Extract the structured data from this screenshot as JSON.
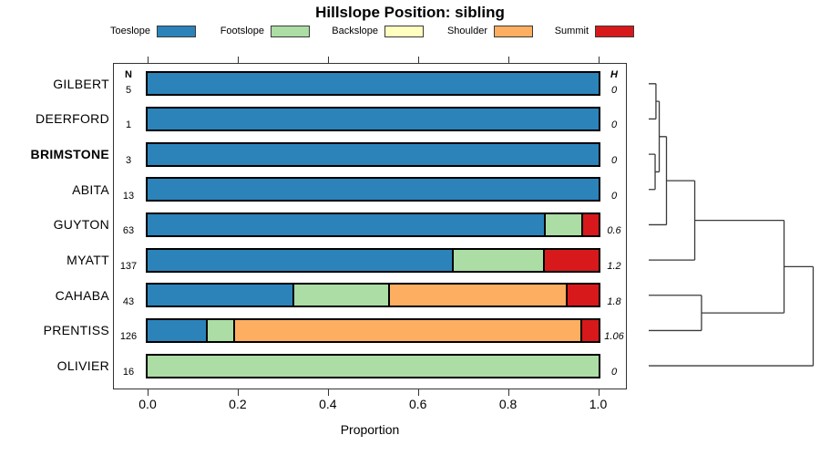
{
  "title": "Hillslope Position: sibling",
  "legend": [
    {
      "label": "Toeslope",
      "color": "#2B83BA"
    },
    {
      "label": "Footslope",
      "color": "#ABDDA4"
    },
    {
      "label": "Backslope",
      "color": "#FFFFBF"
    },
    {
      "label": "Shoulder",
      "color": "#FDAE61"
    },
    {
      "label": "Summit",
      "color": "#D7191C"
    }
  ],
  "table": {
    "n_header": "N",
    "h_header": "H"
  },
  "xaxis": {
    "label": "Proportion",
    "ticks": [
      "0.0",
      "0.2",
      "0.4",
      "0.6",
      "0.8",
      "1.0"
    ],
    "range": [
      0,
      1
    ]
  },
  "chart_data": {
    "type": "bar",
    "stacked": true,
    "orientation": "horizontal",
    "title": "Hillslope Position: sibling",
    "xlabel": "Proportion",
    "xlim": [
      0,
      1
    ],
    "grid": false,
    "legend_position": "top",
    "categories": [
      "Toeslope",
      "Footslope",
      "Backslope",
      "Shoulder",
      "Summit"
    ],
    "colors": [
      "#2B83BA",
      "#ABDDA4",
      "#FFFFBF",
      "#FDAE61",
      "#D7191C"
    ],
    "rows": [
      {
        "label": "GILBERT",
        "bold": false,
        "n": 5,
        "h": "0",
        "proportions": [
          1,
          0,
          0,
          0,
          0
        ]
      },
      {
        "label": "DEERFORD",
        "bold": false,
        "n": 1,
        "h": "0",
        "proportions": [
          1,
          0,
          0,
          0,
          0
        ]
      },
      {
        "label": "BRIMSTONE",
        "bold": true,
        "n": 3,
        "h": "0",
        "proportions": [
          1,
          0,
          0,
          0,
          0
        ]
      },
      {
        "label": "ABITA",
        "bold": false,
        "n": 13,
        "h": "0",
        "proportions": [
          1,
          0,
          0,
          0,
          0
        ]
      },
      {
        "label": "GUYTON",
        "bold": false,
        "n": 63,
        "h": "0.6",
        "proportions": [
          0.885,
          0.08,
          0,
          0,
          0.035
        ]
      },
      {
        "label": "MYATT",
        "bold": false,
        "n": 137,
        "h": "1.2",
        "proportions": [
          0.68,
          0.2,
          0,
          0,
          0.12
        ]
      },
      {
        "label": "CAHABA",
        "bold": false,
        "n": 43,
        "h": "1.8",
        "proportions": [
          0.325,
          0.21,
          0,
          0.395,
          0.07
        ]
      },
      {
        "label": "PRENTISS",
        "bold": false,
        "n": 126,
        "h": "1.06",
        "proportions": [
          0.131,
          0.058,
          0,
          0.775,
          0.036
        ]
      },
      {
        "label": "OLIVIER",
        "bold": false,
        "n": 16,
        "h": "0",
        "proportions": [
          0,
          1,
          0,
          0,
          0
        ]
      }
    ],
    "dendrogram": {
      "leaves": [
        "GILBERT",
        "DEERFORD",
        "BRIMSTONE",
        "ABITA",
        "GUYTON",
        "MYATT",
        "CAHABA",
        "PRENTISS",
        "OLIVIER"
      ],
      "merges": [
        {
          "id": "m1",
          "children": [
            "GILBERT",
            "DEERFORD"
          ],
          "height": 0.044
        },
        {
          "id": "m2",
          "children": [
            "BRIMSTONE",
            "ABITA"
          ],
          "height": 0.039
        },
        {
          "id": "m3",
          "children": [
            "m1",
            "m2"
          ],
          "height": 0.064
        },
        {
          "id": "m4",
          "children": [
            "m3",
            "GUYTON"
          ],
          "height": 0.108
        },
        {
          "id": "m5",
          "children": [
            "m4",
            "MYATT"
          ],
          "height": 0.28
        },
        {
          "id": "m6",
          "children": [
            "CAHABA",
            "PRENTISS"
          ],
          "height": 0.321
        },
        {
          "id": "m7",
          "children": [
            "m5",
            "m6"
          ],
          "height": 0.823
        },
        {
          "id": "m8",
          "children": [
            "m7",
            "OLIVIER"
          ],
          "height": 1.0
        }
      ]
    }
  }
}
